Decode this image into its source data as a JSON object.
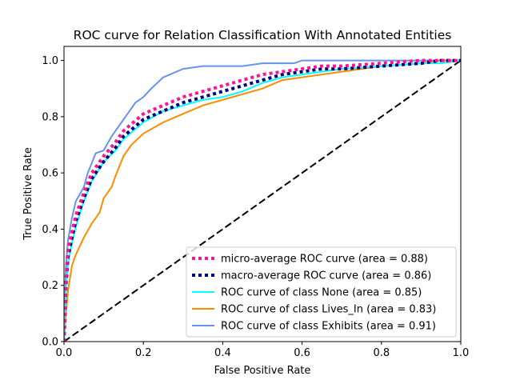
{
  "chart_data": {
    "type": "line",
    "title": "ROC curve for Relation Classification With Annotated Entities",
    "xlabel": "False Positive Rate",
    "ylabel": "True Positive Rate",
    "xlim": [
      0.0,
      1.0
    ],
    "ylim": [
      0.0,
      1.05
    ],
    "x_ticks": [
      "0.0",
      "0.2",
      "0.4",
      "0.6",
      "0.8",
      "1.0"
    ],
    "y_ticks": [
      "0.0",
      "0.2",
      "0.4",
      "0.6",
      "0.8",
      "1.0"
    ],
    "grid": false,
    "legend_position": "lower right",
    "series": [
      {
        "name": "micro-average ROC curve (area = 0.88)",
        "color": "#ff1493",
        "style": "dotted",
        "x": [
          0.0,
          0.005,
          0.01,
          0.02,
          0.03,
          0.05,
          0.07,
          0.1,
          0.13,
          0.15,
          0.2,
          0.25,
          0.3,
          0.35,
          0.4,
          0.45,
          0.5,
          0.55,
          0.6,
          0.65,
          0.7,
          0.8,
          0.9,
          0.95,
          1.0
        ],
        "y": [
          0.0,
          0.22,
          0.33,
          0.39,
          0.45,
          0.53,
          0.6,
          0.66,
          0.71,
          0.75,
          0.81,
          0.84,
          0.87,
          0.89,
          0.91,
          0.93,
          0.95,
          0.96,
          0.97,
          0.98,
          0.98,
          0.99,
          1.0,
          1.0,
          1.0
        ]
      },
      {
        "name": "macro-average ROC curve (area = 0.86)",
        "color": "#000080",
        "style": "dotted",
        "x": [
          0.0,
          0.005,
          0.01,
          0.02,
          0.03,
          0.05,
          0.07,
          0.1,
          0.13,
          0.15,
          0.2,
          0.25,
          0.3,
          0.35,
          0.4,
          0.45,
          0.5,
          0.55,
          0.6,
          0.65,
          0.7,
          0.8,
          0.9,
          0.95,
          1.0
        ],
        "y": [
          0.0,
          0.2,
          0.3,
          0.37,
          0.43,
          0.51,
          0.58,
          0.64,
          0.69,
          0.73,
          0.79,
          0.82,
          0.85,
          0.87,
          0.89,
          0.91,
          0.93,
          0.95,
          0.96,
          0.97,
          0.97,
          0.98,
          0.99,
          1.0,
          1.0
        ]
      },
      {
        "name": "ROC curve of class None (area = 0.85)",
        "color": "#00ffff",
        "style": "solid",
        "x": [
          0.0,
          0.005,
          0.01,
          0.02,
          0.03,
          0.05,
          0.07,
          0.1,
          0.13,
          0.15,
          0.2,
          0.25,
          0.3,
          0.35,
          0.4,
          0.45,
          0.5,
          0.55,
          0.6,
          0.65,
          0.7,
          0.8,
          0.9,
          0.95,
          1.0
        ],
        "y": [
          0.0,
          0.19,
          0.28,
          0.35,
          0.41,
          0.5,
          0.57,
          0.64,
          0.68,
          0.72,
          0.78,
          0.82,
          0.84,
          0.86,
          0.87,
          0.89,
          0.92,
          0.94,
          0.95,
          0.96,
          0.97,
          0.98,
          0.99,
          0.99,
          1.0
        ]
      },
      {
        "name": "ROC curve of class Lives_In (area = 0.83)",
        "color": "#ff8c00",
        "style": "solid",
        "x": [
          0.0,
          0.005,
          0.01,
          0.02,
          0.03,
          0.05,
          0.07,
          0.09,
          0.1,
          0.12,
          0.13,
          0.15,
          0.17,
          0.2,
          0.25,
          0.3,
          0.35,
          0.4,
          0.45,
          0.5,
          0.55,
          0.6,
          0.65,
          0.7,
          0.8,
          0.9,
          0.95,
          1.0
        ],
        "y": [
          0.0,
          0.1,
          0.18,
          0.27,
          0.31,
          0.37,
          0.42,
          0.46,
          0.51,
          0.55,
          0.59,
          0.66,
          0.7,
          0.74,
          0.78,
          0.81,
          0.84,
          0.86,
          0.88,
          0.9,
          0.93,
          0.94,
          0.95,
          0.96,
          0.98,
          0.99,
          1.0,
          1.0
        ]
      },
      {
        "name": "ROC curve of class Exhibits (area = 0.91)",
        "color": "#6495ed",
        "style": "solid",
        "x": [
          0.0,
          0.005,
          0.01,
          0.02,
          0.03,
          0.05,
          0.06,
          0.08,
          0.1,
          0.12,
          0.15,
          0.18,
          0.2,
          0.22,
          0.25,
          0.3,
          0.35,
          0.4,
          0.45,
          0.5,
          0.55,
          0.58,
          0.6,
          0.7,
          0.8,
          0.9,
          0.95,
          1.0
        ],
        "y": [
          0.0,
          0.27,
          0.36,
          0.44,
          0.5,
          0.55,
          0.6,
          0.67,
          0.68,
          0.73,
          0.79,
          0.85,
          0.87,
          0.9,
          0.94,
          0.97,
          0.98,
          0.98,
          0.98,
          0.99,
          0.99,
          0.99,
          1.0,
          1.0,
          1.0,
          1.0,
          1.0,
          1.0
        ]
      },
      {
        "name": "",
        "color": "#000000",
        "style": "dashed",
        "x": [
          0.0,
          1.0
        ],
        "y": [
          0.0,
          1.0
        ]
      }
    ]
  }
}
